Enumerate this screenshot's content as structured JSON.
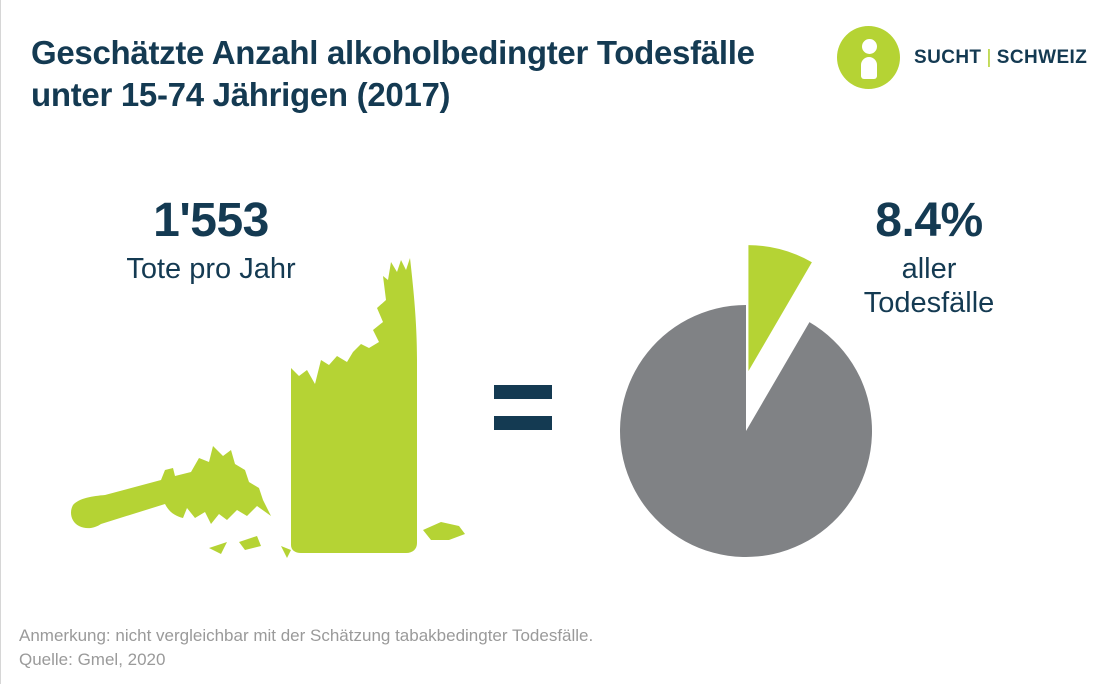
{
  "title": "Geschätzte Anzahl alkoholbedingter Todesfälle unter 15-74 Jährigen (2017)",
  "logo": {
    "part1": "SUCHT",
    "part2": "SCHWEIZ"
  },
  "left_stat": {
    "value": "1'553",
    "label": "Tote pro Jahr"
  },
  "right_stat": {
    "value": "8.4%",
    "label_line1": "aller",
    "label_line2": "Todesfälle"
  },
  "notes": {
    "line1": "Anmerkung: nicht vergleichbar mit der Schätzung tabakbedingter Todesfälle.",
    "line2": "Quelle: Gmel, 2020"
  },
  "colors": {
    "accent": "#b5d334",
    "navy": "#143a52",
    "grey": "#808285",
    "note": "#9a9a9a"
  },
  "chart_data": {
    "type": "pie",
    "title": "",
    "slices": [
      {
        "label": "aller Todesfälle",
        "value": 8.4,
        "color": "#b5d334",
        "exploded": true
      },
      {
        "label": "",
        "value": 91.6,
        "color": "#808285",
        "exploded": false
      }
    ],
    "slice_labels": [
      "8.4%",
      "aller Todesfälle"
    ],
    "legend": "none",
    "grid": false
  }
}
